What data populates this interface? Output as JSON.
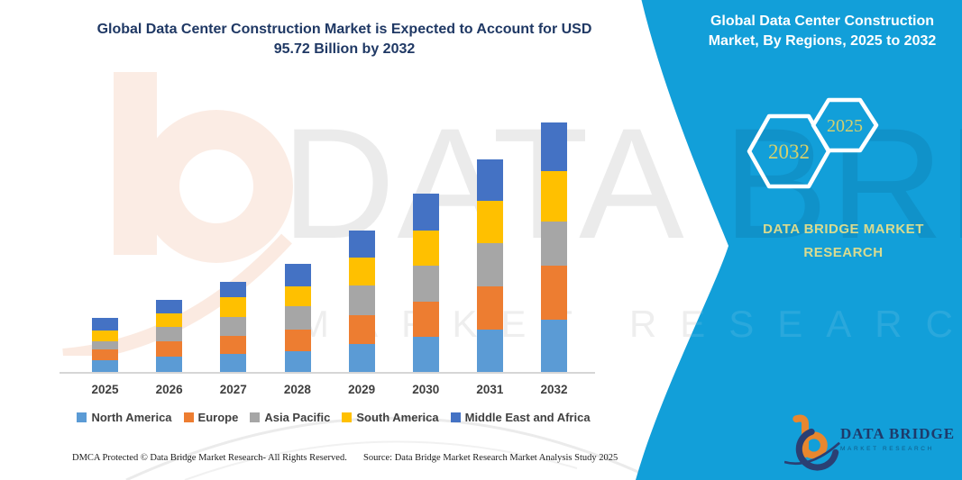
{
  "chart": {
    "title_line1": "Global Data Center Construction Market is Expected to Account for USD",
    "title_line2": "95.72 Billion by 2032"
  },
  "chart_data": {
    "type": "bar",
    "stacked": true,
    "unit": "USD Billion",
    "title": "Global Data Center Construction Market is Expected to Account for USD 95.72 Billion by 2032",
    "categories": [
      "2025",
      "2026",
      "2027",
      "2028",
      "2029",
      "2030",
      "2031",
      "2032"
    ],
    "series": [
      {
        "name": "North America",
        "color": "#5b9bd5",
        "values": [
          4.4,
          5.9,
          6.9,
          8.1,
          10.6,
          13.5,
          16.1,
          19.9
        ]
      },
      {
        "name": "Europe",
        "color": "#ed7d31",
        "values": [
          4.3,
          5.8,
          6.9,
          8.3,
          11.3,
          13.5,
          16.9,
          20.9
        ]
      },
      {
        "name": "Asia Pacific",
        "color": "#a6a6a6",
        "values": [
          2.9,
          5.6,
          7.4,
          8.7,
          11.4,
          13.6,
          16.5,
          16.8
        ]
      },
      {
        "name": "South America",
        "color": "#ffc000",
        "values": [
          4.4,
          5.2,
          7.4,
          7.7,
          10.5,
          13.6,
          16.3,
          19.6
        ]
      },
      {
        "name": "Middle East and Africa",
        "color": "#4472c4",
        "values": [
          4.6,
          5.3,
          6.1,
          8.6,
          10.4,
          14.1,
          15.9,
          18.5
        ]
      }
    ],
    "final_year_total": "95.72",
    "legend_position": "bottom",
    "grid": false,
    "xlabel": "",
    "ylabel": ""
  },
  "panel": {
    "title_line1": "Global Data Center Construction",
    "title_line2": "Market, By Regions, 2025 to 2032",
    "hexagons": [
      {
        "label": "2032"
      },
      {
        "label": "2025"
      }
    ],
    "brand_line1": "DATA BRIDGE MARKET",
    "brand_line2": "RESEARCH",
    "logo": {
      "name": "DATA BRIDGE",
      "sub": "MARKET RESEARCH"
    },
    "accent_color": "#129fd9",
    "hex_text_color": "#d5d06c"
  },
  "watermark": {
    "line1": "DATA BRIDGE",
    "line2": "MARKET RESEARCH"
  },
  "footer": {
    "left": "DMCA Protected © Data Bridge Market Research-  All Rights Reserved.",
    "source": "Source: Data Bridge Market Research  Market Analysis Study 2025"
  }
}
